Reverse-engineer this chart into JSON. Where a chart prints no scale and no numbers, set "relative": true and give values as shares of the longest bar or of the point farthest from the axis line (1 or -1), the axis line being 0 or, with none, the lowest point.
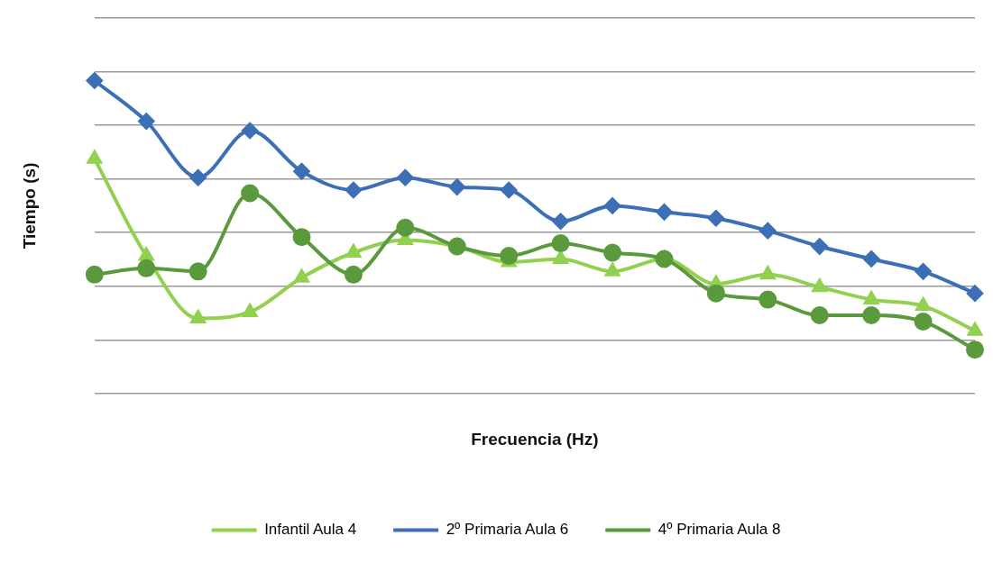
{
  "chart_data": {
    "type": "line",
    "relative": true,
    "xlabel": "Frecuencia (Hz)",
    "ylabel": "Tiempo (s)",
    "grid": "y",
    "legend": "bottom",
    "categories": [
      null,
      null,
      null,
      null,
      null,
      null,
      null,
      null,
      null,
      null,
      null,
      null,
      null,
      null,
      null,
      null,
      null,
      null
    ],
    "series": [
      {
        "name": "Infantil Aula 4",
        "color": "#92d050",
        "marker": "triangle",
        "values": [
          0.75,
          0.44,
          0.24,
          0.26,
          0.37,
          0.45,
          0.49,
          0.47,
          0.42,
          0.43,
          0.39,
          0.43,
          0.35,
          0.38,
          0.34,
          0.3,
          0.28,
          0.2
        ]
      },
      {
        "name": "2º Primaria Aula 6",
        "color": "#3d6fb6",
        "marker": "diamond",
        "values": [
          1.0,
          0.87,
          0.69,
          0.84,
          0.71,
          0.65,
          0.69,
          0.66,
          0.65,
          0.55,
          0.6,
          0.58,
          0.56,
          0.52,
          0.47,
          0.43,
          0.39,
          0.32
        ]
      },
      {
        "name": "4º Primaria Aula 8",
        "color": "#5a9a3c",
        "marker": "circle",
        "values": [
          0.38,
          0.4,
          0.39,
          0.64,
          0.5,
          0.38,
          0.53,
          0.47,
          0.44,
          0.48,
          0.45,
          0.43,
          0.32,
          0.3,
          0.25,
          0.25,
          0.23,
          0.14
        ]
      }
    ]
  }
}
